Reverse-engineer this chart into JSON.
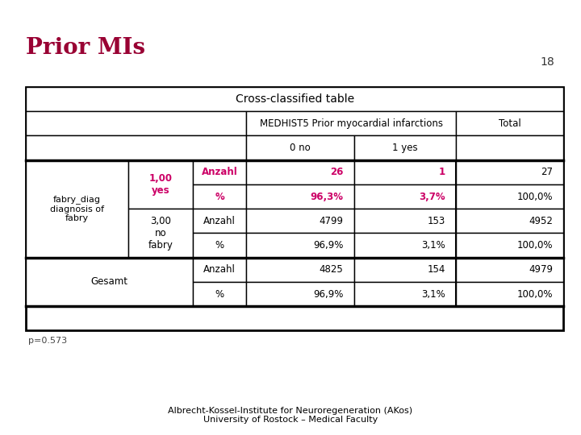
{
  "title": "Prior MIs",
  "slide_number": "18",
  "table_title": "Cross-classified table",
  "medhist_header": "MEDHIST5 Prior myocardial infarctions",
  "total_header": "Total",
  "col_headers": [
    "0 no",
    "1 yes"
  ],
  "row_groups": [
    {
      "group_label": "fabry_diag\ndiagnosis of\nfabry",
      "subgroups": [
        {
          "sub_label": "1,00\nyes",
          "sub_label_color": "#cc0066",
          "rows": [
            {
              "label": "Anzahl",
              "label_color": "#cc0066",
              "vals": [
                "26",
                "1",
                "27"
              ],
              "val_colors": [
                "#cc0066",
                "#cc0066",
                "#000000"
              ]
            },
            {
              "label": "%",
              "label_color": "#cc0066",
              "vals": [
                "96,3%",
                "3,7%",
                "100,0%"
              ],
              "val_colors": [
                "#cc0066",
                "#cc0066",
                "#000000"
              ]
            }
          ]
        },
        {
          "sub_label": "3,00\nno\nfabry",
          "sub_label_color": "#000000",
          "rows": [
            {
              "label": "Anzahl",
              "label_color": "#000000",
              "vals": [
                "4799",
                "153",
                "4952"
              ],
              "val_colors": [
                "#000000",
                "#000000",
                "#000000"
              ]
            },
            {
              "label": "%",
              "label_color": "#000000",
              "vals": [
                "96,9%",
                "3,1%",
                "100,0%"
              ],
              "val_colors": [
                "#000000",
                "#000000",
                "#000000"
              ]
            }
          ]
        }
      ]
    }
  ],
  "gesamt_rows": [
    {
      "label": "Anzahl",
      "vals": [
        "4825",
        "154",
        "4979"
      ]
    },
    {
      "label": "%",
      "vals": [
        "96,9%",
        "3,1%",
        "100,0%"
      ]
    }
  ],
  "gesamt_label": "Gesamt",
  "p_value": "p=0.573",
  "footer_text": "Albrecht-Kossel-Institute for Neuroregeneration (AKos)\nUniversity of Rostock – Medical Faculty",
  "title_color": "#990033",
  "header_bg": "#f0f0f0",
  "slide_bg": "#ffffff",
  "border_color": "#000000"
}
